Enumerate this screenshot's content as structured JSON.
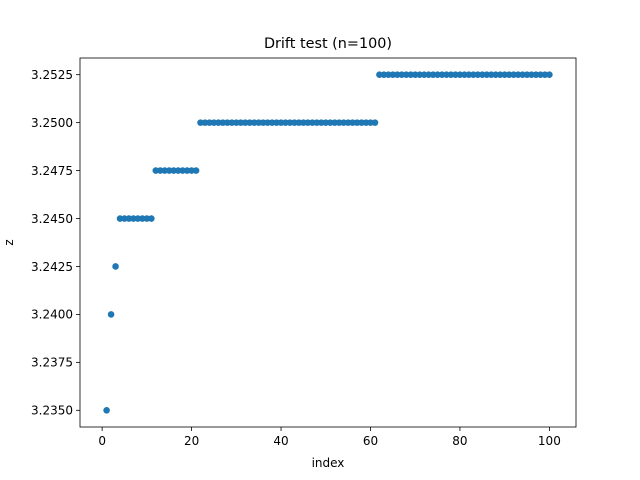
{
  "chart_data": {
    "type": "scatter",
    "title": "Drift test (n=100)",
    "xlabel": "index",
    "ylabel": "z",
    "xlim": [
      -4.95,
      105.95
    ],
    "ylim": [
      3.23413,
      3.25337
    ],
    "xticks": [
      0,
      20,
      40,
      60,
      80,
      100
    ],
    "yticks": [
      3.235,
      3.2375,
      3.24,
      3.2425,
      3.245,
      3.2475,
      3.25,
      3.2525
    ],
    "ytick_labels": [
      "3.2350",
      "3.2375",
      "3.2400",
      "3.2425",
      "3.2450",
      "3.2475",
      "3.2500",
      "3.2525"
    ],
    "grid": false,
    "marker_color": "#1f77b4",
    "points": [
      {
        "x": 1,
        "y": 3.235
      },
      {
        "x": 2,
        "y": 3.24
      },
      {
        "x": 3,
        "y": 3.2425
      },
      {
        "x": 4,
        "y": 3.245
      },
      {
        "x": 5,
        "y": 3.245
      },
      {
        "x": 6,
        "y": 3.245
      },
      {
        "x": 7,
        "y": 3.245
      },
      {
        "x": 8,
        "y": 3.245
      },
      {
        "x": 9,
        "y": 3.245
      },
      {
        "x": 10,
        "y": 3.245
      },
      {
        "x": 11,
        "y": 3.245
      },
      {
        "x": 12,
        "y": 3.2475
      },
      {
        "x": 13,
        "y": 3.2475
      },
      {
        "x": 14,
        "y": 3.2475
      },
      {
        "x": 15,
        "y": 3.2475
      },
      {
        "x": 16,
        "y": 3.2475
      },
      {
        "x": 17,
        "y": 3.2475
      },
      {
        "x": 18,
        "y": 3.2475
      },
      {
        "x": 19,
        "y": 3.2475
      },
      {
        "x": 20,
        "y": 3.2475
      },
      {
        "x": 21,
        "y": 3.2475
      },
      {
        "x": 22,
        "y": 3.25
      },
      {
        "x": 23,
        "y": 3.25
      },
      {
        "x": 24,
        "y": 3.25
      },
      {
        "x": 25,
        "y": 3.25
      },
      {
        "x": 26,
        "y": 3.25
      },
      {
        "x": 27,
        "y": 3.25
      },
      {
        "x": 28,
        "y": 3.25
      },
      {
        "x": 29,
        "y": 3.25
      },
      {
        "x": 30,
        "y": 3.25
      },
      {
        "x": 31,
        "y": 3.25
      },
      {
        "x": 32,
        "y": 3.25
      },
      {
        "x": 33,
        "y": 3.25
      },
      {
        "x": 34,
        "y": 3.25
      },
      {
        "x": 35,
        "y": 3.25
      },
      {
        "x": 36,
        "y": 3.25
      },
      {
        "x": 37,
        "y": 3.25
      },
      {
        "x": 38,
        "y": 3.25
      },
      {
        "x": 39,
        "y": 3.25
      },
      {
        "x": 40,
        "y": 3.25
      },
      {
        "x": 41,
        "y": 3.25
      },
      {
        "x": 42,
        "y": 3.25
      },
      {
        "x": 43,
        "y": 3.25
      },
      {
        "x": 44,
        "y": 3.25
      },
      {
        "x": 45,
        "y": 3.25
      },
      {
        "x": 46,
        "y": 3.25
      },
      {
        "x": 47,
        "y": 3.25
      },
      {
        "x": 48,
        "y": 3.25
      },
      {
        "x": 49,
        "y": 3.25
      },
      {
        "x": 50,
        "y": 3.25
      },
      {
        "x": 51,
        "y": 3.25
      },
      {
        "x": 52,
        "y": 3.25
      },
      {
        "x": 53,
        "y": 3.25
      },
      {
        "x": 54,
        "y": 3.25
      },
      {
        "x": 55,
        "y": 3.25
      },
      {
        "x": 56,
        "y": 3.25
      },
      {
        "x": 57,
        "y": 3.25
      },
      {
        "x": 58,
        "y": 3.25
      },
      {
        "x": 59,
        "y": 3.25
      },
      {
        "x": 60,
        "y": 3.25
      },
      {
        "x": 61,
        "y": 3.25
      },
      {
        "x": 62,
        "y": 3.2525
      },
      {
        "x": 63,
        "y": 3.2525
      },
      {
        "x": 64,
        "y": 3.2525
      },
      {
        "x": 65,
        "y": 3.2525
      },
      {
        "x": 66,
        "y": 3.2525
      },
      {
        "x": 67,
        "y": 3.2525
      },
      {
        "x": 68,
        "y": 3.2525
      },
      {
        "x": 69,
        "y": 3.2525
      },
      {
        "x": 70,
        "y": 3.2525
      },
      {
        "x": 71,
        "y": 3.2525
      },
      {
        "x": 72,
        "y": 3.2525
      },
      {
        "x": 73,
        "y": 3.2525
      },
      {
        "x": 74,
        "y": 3.2525
      },
      {
        "x": 75,
        "y": 3.2525
      },
      {
        "x": 76,
        "y": 3.2525
      },
      {
        "x": 77,
        "y": 3.2525
      },
      {
        "x": 78,
        "y": 3.2525
      },
      {
        "x": 79,
        "y": 3.2525
      },
      {
        "x": 80,
        "y": 3.2525
      },
      {
        "x": 81,
        "y": 3.2525
      },
      {
        "x": 82,
        "y": 3.2525
      },
      {
        "x": 83,
        "y": 3.2525
      },
      {
        "x": 84,
        "y": 3.2525
      },
      {
        "x": 85,
        "y": 3.2525
      },
      {
        "x": 86,
        "y": 3.2525
      },
      {
        "x": 87,
        "y": 3.2525
      },
      {
        "x": 88,
        "y": 3.2525
      },
      {
        "x": 89,
        "y": 3.2525
      },
      {
        "x": 90,
        "y": 3.2525
      },
      {
        "x": 91,
        "y": 3.2525
      },
      {
        "x": 92,
        "y": 3.2525
      },
      {
        "x": 93,
        "y": 3.2525
      },
      {
        "x": 94,
        "y": 3.2525
      },
      {
        "x": 95,
        "y": 3.2525
      },
      {
        "x": 96,
        "y": 3.2525
      },
      {
        "x": 97,
        "y": 3.2525
      },
      {
        "x": 98,
        "y": 3.2525
      },
      {
        "x": 99,
        "y": 3.2525
      },
      {
        "x": 100,
        "y": 3.2525
      }
    ]
  }
}
